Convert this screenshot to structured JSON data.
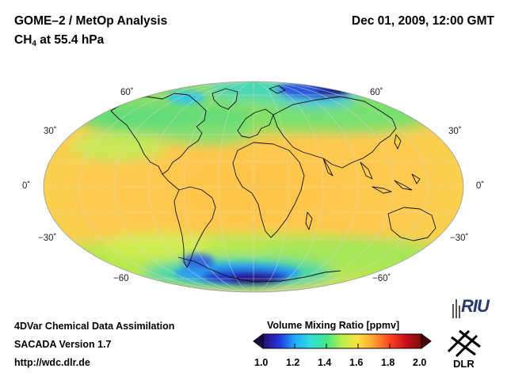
{
  "header": {
    "title": "GOME–2 / MetOp Analysis",
    "species_main": "CH",
    "species_sub": "4",
    "species_level": " at 55.4 hPa",
    "datetime": "Dec 01, 2009, 12:00 GMT"
  },
  "map": {
    "projection": "Hammer/Mollweide (global)",
    "lat_labels_left": [
      "60˚",
      "30˚",
      "0˚",
      "−30˚",
      "−60"
    ],
    "lat_labels_right": [
      "60˚",
      "30˚",
      "0˚",
      "−30˚",
      "−60˚"
    ]
  },
  "footer": {
    "line1": "4DVar Chemical Data Assimilation",
    "line2": "SACADA Version 1.7",
    "line3": "http://wdc.dlr.de"
  },
  "colorbar": {
    "title": "Volume Mixing Ratio [ppmv]",
    "ticks": [
      "1.0",
      "1.2",
      "1.4",
      "1.6",
      "1.8",
      "2.0"
    ],
    "min": 1.0,
    "max": 2.0,
    "colors": [
      "#2a0a6e",
      "#2233dd",
      "#22aaff",
      "#33dddd",
      "#44e888",
      "#b8ef4a",
      "#ffe040",
      "#ffa030",
      "#ff4422",
      "#c8101a",
      "#7a0a0a"
    ]
  },
  "logos": {
    "riu": "RIU",
    "dlr": "DLR"
  }
}
